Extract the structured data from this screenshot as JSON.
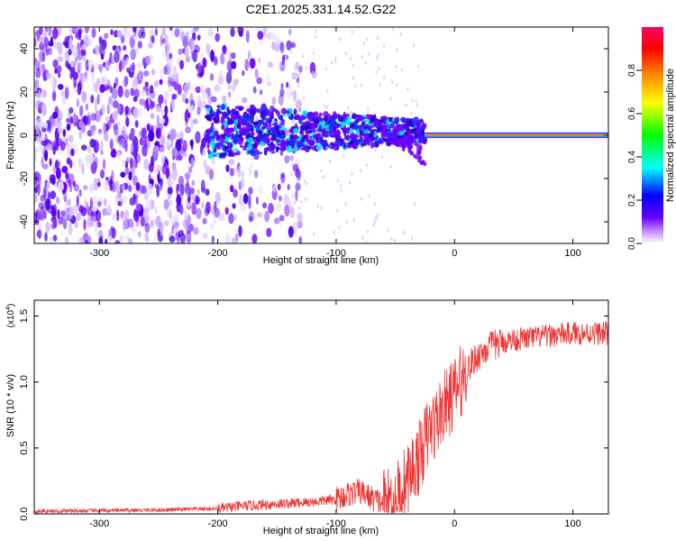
{
  "title": "C2E1.2025.331.14.52.G22",
  "chart_data": [
    {
      "type": "heatmap",
      "title": "C2E1.2025.331.14.52.G22",
      "xlabel": "Height of straight line (km)",
      "ylabel": "Frequency (Hz)",
      "xlim": [
        -355,
        130
      ],
      "ylim": [
        -50,
        50
      ],
      "xticks": [
        -300,
        -200,
        -100,
        0,
        100
      ],
      "xtick_labels": [
        "-300",
        "-200",
        "-100",
        "0",
        "100"
      ],
      "yticks": [
        -40,
        -20,
        0,
        20,
        40
      ],
      "ytick_labels": [
        "-40",
        "-20",
        "0",
        "20",
        "40"
      ],
      "colorbar": {
        "label": "Normalized spectral amplitude",
        "range": [
          0,
          1
        ],
        "ticks": [
          0.0,
          0.2,
          0.4,
          0.6,
          0.8
        ],
        "tick_labels": [
          "0.0",
          "0.2",
          "0.4",
          "0.6",
          "0.8"
        ],
        "colors": [
          "#ffffff",
          "#6600ff",
          "#0000ff",
          "#00ffff",
          "#00ff00",
          "#ffff00",
          "#ff8800",
          "#ff0000",
          "#ff0066"
        ]
      },
      "features": [
        {
          "name": "broadband noise",
          "x_range": [
            -355,
            -120
          ],
          "y_range": [
            -50,
            50
          ],
          "amplitude": 0.05
        },
        {
          "name": "converging signal band",
          "x_range": [
            -210,
            -25
          ],
          "center_hz": 2,
          "amplitude": 0.3
        },
        {
          "name": "steady tone",
          "x_range": [
            -30,
            130
          ],
          "center_hz": 0,
          "amplitude": 1.0
        }
      ]
    },
    {
      "type": "line",
      "xlabel": "Height of straight line (km)",
      "ylabel": "SNR (10 * v/v)",
      "y_scale_label": "(x10",
      "y_scale_exp": "4",
      "xlim": [
        -355,
        130
      ],
      "ylim": [
        0,
        1.62
      ],
      "xticks": [
        -300,
        -200,
        -100,
        0,
        100
      ],
      "xtick_labels": [
        "-300",
        "-200",
        "-100",
        "0",
        "100"
      ],
      "yticks": [
        0.0,
        0.5,
        1.0,
        1.5
      ],
      "ytick_labels": [
        "0.0",
        "0.5",
        "1.0",
        "1.5"
      ],
      "series": [
        {
          "name": "SNR",
          "color": "#ee3333",
          "x": [
            -355,
            -300,
            -250,
            -200,
            -180,
            -160,
            -140,
            -120,
            -110,
            -100,
            -90,
            -80,
            -70,
            -60,
            -50,
            -45,
            -40,
            -35,
            -30,
            -25,
            -20,
            -15,
            -10,
            -5,
            0,
            5,
            10,
            15,
            20,
            25,
            30,
            40,
            50,
            60,
            70,
            80,
            90,
            100,
            110,
            120,
            130
          ],
          "y": [
            0.02,
            0.025,
            0.03,
            0.04,
            0.06,
            0.07,
            0.08,
            0.09,
            0.1,
            0.11,
            0.15,
            0.17,
            0.12,
            0.08,
            0.12,
            0.2,
            0.25,
            0.35,
            0.42,
            0.55,
            0.65,
            0.7,
            0.8,
            0.85,
            0.92,
            1.0,
            1.08,
            1.15,
            1.2,
            1.24,
            1.27,
            1.3,
            1.32,
            1.33,
            1.34,
            1.35,
            1.36,
            1.37,
            1.37,
            1.37,
            1.37
          ]
        }
      ]
    }
  ]
}
